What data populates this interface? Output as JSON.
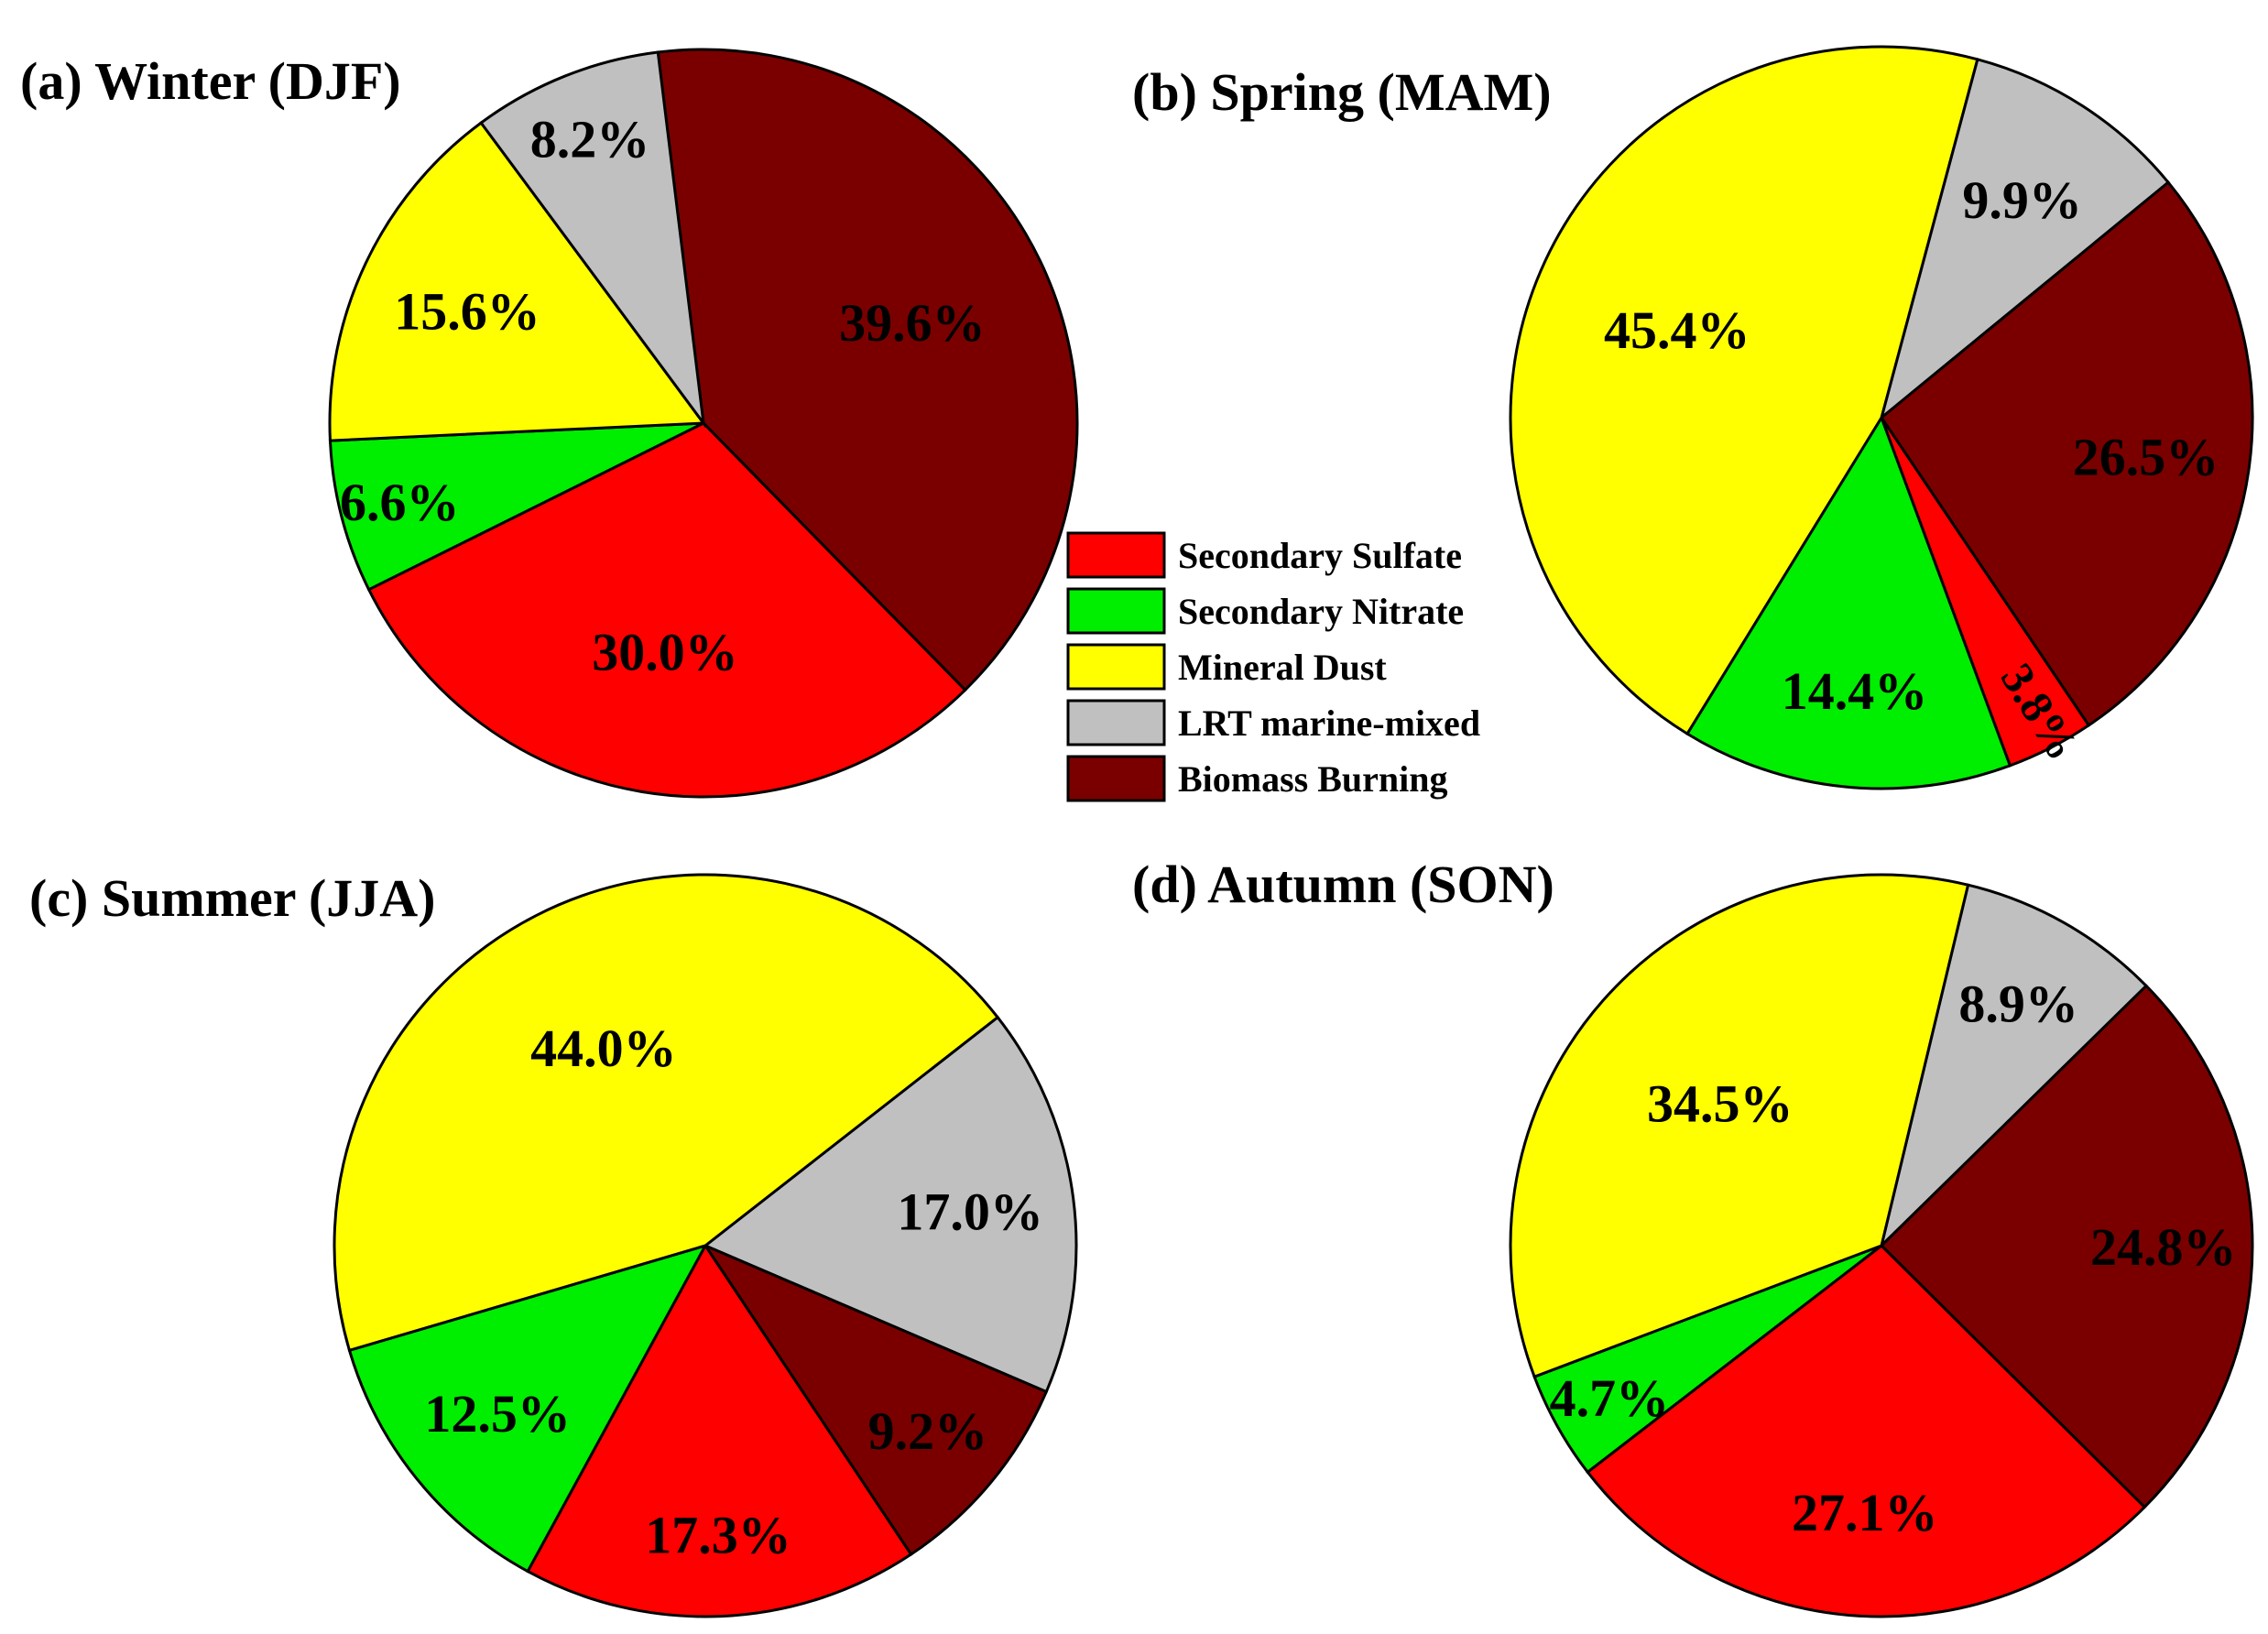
{
  "colors": {
    "Secondary Sulfate": "#ff0000",
    "Secondary Nitrate": "#00ee00",
    "Mineral Dust": "#ffff00",
    "LRT marine-mixed": "#c0c0c0",
    "Biomass Burning": "#7a0000"
  },
  "legend": [
    "Secondary Sulfate",
    "Secondary Nitrate",
    "Mineral Dust",
    "LRT marine-mixed",
    "Biomass Burning"
  ],
  "chart_data": [
    {
      "type": "pie",
      "title": "(a) Winter (DJF)",
      "slices": [
        {
          "name": "Biomass Burning",
          "value": 39.6,
          "label": "39.6%"
        },
        {
          "name": "Secondary Sulfate",
          "value": 30.0,
          "label": "30.0%"
        },
        {
          "name": "Secondary Nitrate",
          "value": 6.6,
          "label": "6.6%"
        },
        {
          "name": "Mineral Dust",
          "value": 15.6,
          "label": "15.6%"
        },
        {
          "name": "LRT marine-mixed",
          "value": 8.2,
          "label": "8.2%"
        }
      ]
    },
    {
      "type": "pie",
      "title": "(b) Spring (MAM)",
      "slices": [
        {
          "name": "LRT marine-mixed",
          "value": 9.9,
          "label": "9.9%"
        },
        {
          "name": "Biomass Burning",
          "value": 26.5,
          "label": "26.5%"
        },
        {
          "name": "Secondary Sulfate",
          "value": 3.8,
          "label": "3.8%"
        },
        {
          "name": "Secondary Nitrate",
          "value": 14.4,
          "label": "14.4%"
        },
        {
          "name": "Mineral Dust",
          "value": 45.4,
          "label": "45.4%"
        }
      ]
    },
    {
      "type": "pie",
      "title": "(c) Summer (JJA)",
      "slices": [
        {
          "name": "LRT marine-mixed",
          "value": 17.0,
          "label": "17.0%"
        },
        {
          "name": "Biomass Burning",
          "value": 9.2,
          "label": "9.2%"
        },
        {
          "name": "Secondary Sulfate",
          "value": 17.3,
          "label": "17.3%"
        },
        {
          "name": "Secondary Nitrate",
          "value": 12.5,
          "label": "12.5%"
        },
        {
          "name": "Mineral Dust",
          "value": 44.0,
          "label": "44.0%"
        }
      ]
    },
    {
      "type": "pie",
      "title": "(d) Autumn (SON)",
      "slices": [
        {
          "name": "LRT marine-mixed",
          "value": 8.9,
          "label": "8.9%"
        },
        {
          "name": "Biomass Burning",
          "value": 24.8,
          "label": "24.8%"
        },
        {
          "name": "Secondary Sulfate",
          "value": 27.1,
          "label": "27.1%"
        },
        {
          "name": "Secondary Nitrate",
          "value": 4.7,
          "label": "4.7%"
        },
        {
          "name": "Mineral Dust",
          "value": 34.5,
          "label": "34.5%"
        }
      ]
    }
  ]
}
